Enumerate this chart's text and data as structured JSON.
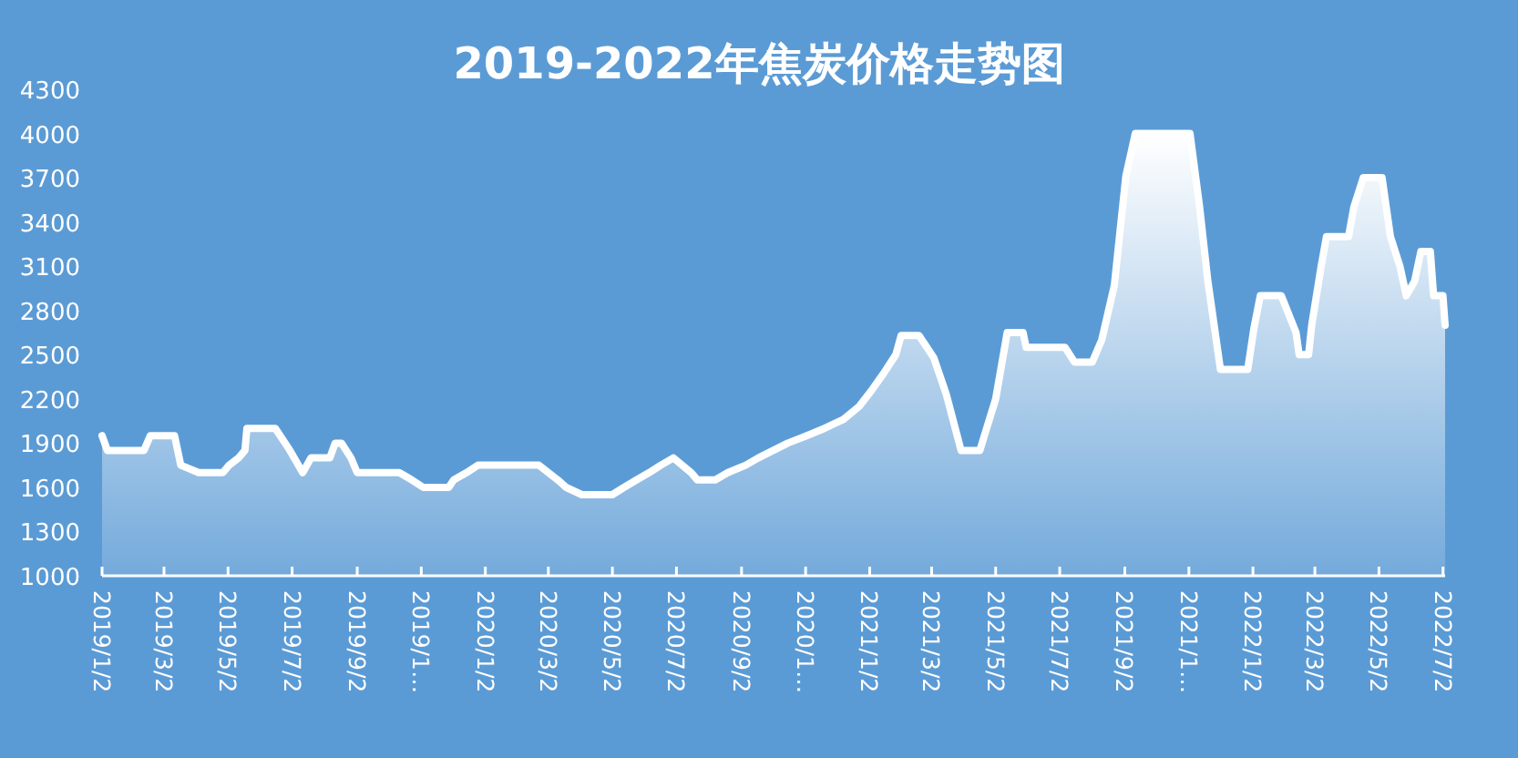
{
  "chart_data": {
    "type": "area",
    "title": "2019-2022年焦炭价格走势图",
    "x": [
      "2019-01-02",
      "2019-01-07",
      "2019-02-11",
      "2019-02-17",
      "2019-03-12",
      "2019-03-18",
      "2019-04-04",
      "2019-04-27",
      "2019-05-03",
      "2019-05-12",
      "2019-05-18",
      "2019-05-20",
      "2019-06-16",
      "2019-06-30",
      "2019-07-12",
      "2019-07-20",
      "2019-08-07",
      "2019-08-12",
      "2019-08-18",
      "2019-08-27",
      "2019-09-02",
      "2019-10-12",
      "2019-10-24",
      "2019-11-04",
      "2019-11-28",
      "2019-12-03",
      "2019-12-15",
      "2019-12-26",
      "2020-02-22",
      "2020-03-11",
      "2020-03-19",
      "2020-04-03",
      "2020-05-02",
      "2020-05-13",
      "2020-05-25",
      "2020-06-06",
      "2020-06-17",
      "2020-06-29",
      "2020-07-16",
      "2020-07-22",
      "2020-08-08",
      "2020-08-20",
      "2020-09-06",
      "2020-09-18",
      "2020-10-16",
      "2020-11-03",
      "2020-11-20",
      "2020-12-08",
      "2020-12-23",
      "2021-01-03",
      "2021-01-15",
      "2021-01-27",
      "2021-02-01",
      "2021-02-18",
      "2021-03-04",
      "2021-03-16",
      "2021-03-30",
      "2021-04-17",
      "2021-05-02",
      "2021-05-13",
      "2021-05-28",
      "2021-05-31",
      "2021-07-07",
      "2021-07-16",
      "2021-08-02",
      "2021-08-11",
      "2021-08-23",
      "2021-09-03",
      "2021-09-12",
      "2021-11-03",
      "2021-11-12",
      "2021-11-20",
      "2021-12-02",
      "2021-12-28",
      "2022-01-03",
      "2022-01-09",
      "2022-01-29",
      "2022-02-12",
      "2022-02-15",
      "2022-02-24",
      "2022-02-27",
      "2022-03-08",
      "2022-03-13",
      "2022-04-03",
      "2022-04-08",
      "2022-04-17",
      "2022-05-05",
      "2022-05-13",
      "2022-05-22",
      "2022-05-28",
      "2022-06-05",
      "2022-06-11",
      "2022-06-20",
      "2022-06-23",
      "2022-07-02",
      "2022-07-04"
    ],
    "series": [
      {
        "color": "#ffffff",
        "values": [
          1950,
          1850,
          1850,
          1950,
          1950,
          1750,
          1700,
          1700,
          1750,
          1800,
          1850,
          2000,
          2000,
          1850,
          1700,
          1800,
          1800,
          1900,
          1900,
          1800,
          1700,
          1700,
          1650,
          1600,
          1600,
          1650,
          1700,
          1750,
          1750,
          1650,
          1600,
          1550,
          1550,
          1600,
          1650,
          1700,
          1750,
          1800,
          1700,
          1650,
          1650,
          1700,
          1750,
          1800,
          1900,
          1950,
          2000,
          2060,
          2150,
          2250,
          2370,
          2500,
          2630,
          2630,
          2480,
          2230,
          1850,
          1850,
          2200,
          2650,
          2650,
          2550,
          2550,
          2450,
          2450,
          2600,
          2970,
          3710,
          4000,
          4000,
          3510,
          3000,
          2400,
          2400,
          2680,
          2900,
          2900,
          2650,
          2500,
          2500,
          2700,
          3100,
          3300,
          3300,
          3500,
          3700,
          3700,
          3300,
          3100,
          2900,
          3000,
          3200,
          3200,
          2900,
          2900,
          2700
        ]
      }
    ],
    "xlim": [
      "2019-01-02",
      "2022-07-04"
    ],
    "xticks": [
      {
        "value": "2019-01-02",
        "label": "2019/1/2"
      },
      {
        "value": "2019-03-02",
        "label": "2019/3/2"
      },
      {
        "value": "2019-05-02",
        "label": "2019/5/2"
      },
      {
        "value": "2019-07-02",
        "label": "2019/7/2"
      },
      {
        "value": "2019-09-02",
        "label": "2019/9/2"
      },
      {
        "value": "2019-11-02",
        "label": "2019/1…"
      },
      {
        "value": "2020-01-02",
        "label": "2020/1/2"
      },
      {
        "value": "2020-03-02",
        "label": "2020/3/2"
      },
      {
        "value": "2020-05-02",
        "label": "2020/5/2"
      },
      {
        "value": "2020-07-02",
        "label": "2020/7/2"
      },
      {
        "value": "2020-09-02",
        "label": "2020/9/2"
      },
      {
        "value": "2020-11-02",
        "label": "2020/1…"
      },
      {
        "value": "2021-01-02",
        "label": "2021/1/2"
      },
      {
        "value": "2021-03-02",
        "label": "2021/3/2"
      },
      {
        "value": "2021-05-02",
        "label": "2021/5/2"
      },
      {
        "value": "2021-07-02",
        "label": "2021/7/2"
      },
      {
        "value": "2021-09-02",
        "label": "2021/9/2"
      },
      {
        "value": "2021-11-02",
        "label": "2021/1…"
      },
      {
        "value": "2022-01-02",
        "label": "2022/1/2"
      },
      {
        "value": "2022-03-02",
        "label": "2022/3/2"
      },
      {
        "value": "2022-05-02",
        "label": "2022/5/2"
      },
      {
        "value": "2022-07-02",
        "label": "2022/7/2"
      }
    ],
    "ylim": [
      1000,
      4300
    ],
    "yticks": [
      1000,
      1300,
      1600,
      1900,
      2200,
      2500,
      2800,
      3100,
      3400,
      3700,
      4000,
      4300
    ],
    "grid": false
  }
}
